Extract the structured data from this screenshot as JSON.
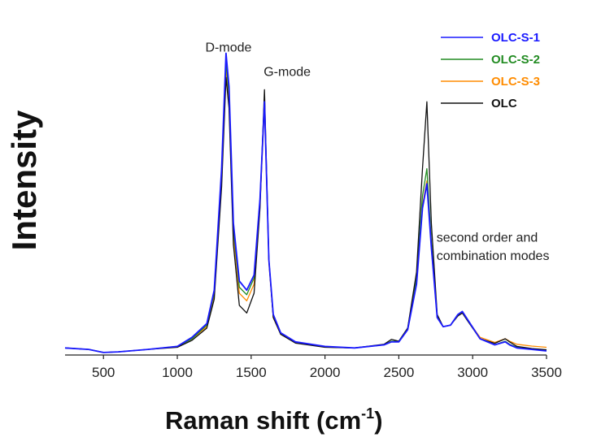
{
  "chart_data": {
    "type": "line",
    "xlabel": "Raman shift (cm",
    "xlabel_sup": "-1",
    "xlabel_close": ")",
    "ylabel": "Intensity",
    "xlim": [
      240,
      3500
    ],
    "ylim": [
      0,
      1.0
    ],
    "x_ticks": [
      500,
      1000,
      1500,
      2000,
      2500,
      3000,
      3500
    ],
    "y_ticks_labeled": false,
    "grid": false,
    "legend_position": "top-right",
    "annotations": [
      {
        "text": "D-mode",
        "x": 1190,
        "y": 0.985
      },
      {
        "text": "G-mode",
        "x": 1585,
        "y": 0.905
      },
      {
        "text": "second order and",
        "x": 2755,
        "y": 0.36
      },
      {
        "text": "combination modes",
        "x": 2755,
        "y": 0.3
      }
    ],
    "x": [
      240,
      400,
      500,
      600,
      800,
      1000,
      1100,
      1200,
      1250,
      1300,
      1330,
      1350,
      1380,
      1420,
      1470,
      1520,
      1560,
      1590,
      1620,
      1650,
      1700,
      1800,
      2000,
      2200,
      2400,
      2450,
      2500,
      2560,
      2620,
      2660,
      2690,
      2720,
      2760,
      2800,
      2850,
      2900,
      2930,
      2970,
      3050,
      3150,
      3220,
      3250,
      3300,
      3400,
      3500
    ],
    "series": [
      {
        "name": "OLC-S-1",
        "color": "#1a1aff",
        "values": [
          0.01,
          0.005,
          -0.005,
          -0.003,
          0.005,
          0.015,
          0.045,
          0.09,
          0.2,
          0.6,
          0.98,
          0.87,
          0.42,
          0.23,
          0.2,
          0.25,
          0.5,
          0.82,
          0.3,
          0.12,
          0.06,
          0.03,
          0.015,
          0.01,
          0.02,
          0.03,
          0.03,
          0.07,
          0.22,
          0.47,
          0.55,
          0.34,
          0.11,
          0.08,
          0.085,
          0.12,
          0.13,
          0.1,
          0.04,
          0.02,
          0.03,
          0.02,
          0.01,
          0.005,
          0.0
        ]
      },
      {
        "name": "OLC-S-2",
        "color": "#228b22",
        "values": [
          0.01,
          0.005,
          -0.005,
          -0.003,
          0.005,
          0.015,
          0.04,
          0.085,
          0.19,
          0.58,
          0.95,
          0.84,
          0.4,
          0.21,
          0.185,
          0.24,
          0.5,
          0.83,
          0.3,
          0.115,
          0.055,
          0.028,
          0.013,
          0.01,
          0.02,
          0.032,
          0.032,
          0.075,
          0.24,
          0.51,
          0.6,
          0.36,
          0.115,
          0.08,
          0.085,
          0.118,
          0.128,
          0.098,
          0.04,
          0.02,
          0.032,
          0.022,
          0.012,
          0.006,
          0.002
        ]
      },
      {
        "name": "OLC-S-3",
        "color": "#ff8c00",
        "values": [
          0.01,
          0.005,
          -0.005,
          -0.003,
          0.005,
          0.015,
          0.04,
          0.08,
          0.18,
          0.56,
          0.93,
          0.82,
          0.38,
          0.19,
          0.165,
          0.22,
          0.48,
          0.81,
          0.29,
          0.11,
          0.055,
          0.028,
          0.013,
          0.01,
          0.02,
          0.03,
          0.03,
          0.07,
          0.225,
          0.48,
          0.56,
          0.34,
          0.11,
          0.08,
          0.085,
          0.118,
          0.128,
          0.098,
          0.045,
          0.028,
          0.04,
          0.032,
          0.022,
          0.016,
          0.012
        ]
      },
      {
        "name": "OLC",
        "color": "#111111",
        "values": [
          0.01,
          0.005,
          -0.005,
          -0.003,
          0.005,
          0.012,
          0.035,
          0.075,
          0.17,
          0.54,
          0.9,
          0.8,
          0.35,
          0.15,
          0.125,
          0.19,
          0.47,
          0.86,
          0.3,
          0.11,
          0.055,
          0.026,
          0.012,
          0.01,
          0.022,
          0.038,
          0.032,
          0.075,
          0.26,
          0.6,
          0.82,
          0.42,
          0.12,
          0.08,
          0.085,
          0.115,
          0.125,
          0.096,
          0.04,
          0.025,
          0.04,
          0.03,
          0.015,
          0.008,
          0.004
        ]
      }
    ]
  }
}
